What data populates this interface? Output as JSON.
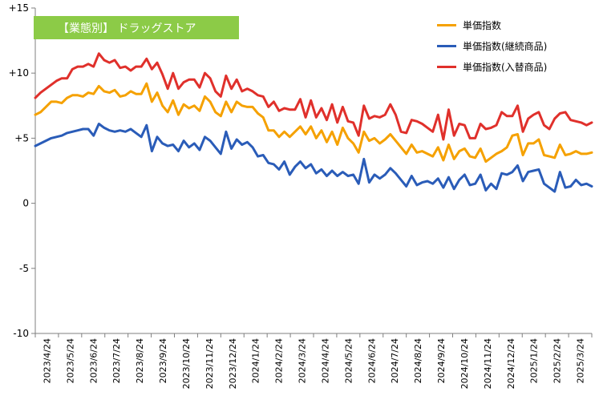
{
  "chart_data": {
    "type": "line",
    "title": "",
    "tag": "【業態別】 ドラッグストア",
    "xlabel": "",
    "ylabel": "",
    "ylim": [
      -10,
      15
    ],
    "y_ticks": [
      "+15",
      "+10",
      "+5",
      "0",
      "-5",
      "-10"
    ],
    "y_tick_values": [
      15,
      10,
      5,
      0,
      -5,
      -10
    ],
    "grid": false,
    "legend_position": "top-right",
    "x_tick_labels": [
      "2023/4/24",
      "2023/5/24",
      "2023/6/24",
      "2023/7/24",
      "2023/8/24",
      "2023/9/24",
      "2023/10/24",
      "2023/11/24",
      "2023/12/24",
      "2024/1/24",
      "2024/2/24",
      "2024/3/24",
      "2024/4/24",
      "2024/5/24",
      "2024/6/24",
      "2024/7/24",
      "2024/8/24",
      "2024/9/24",
      "2024/10/24",
      "2024/11/24",
      "2024/12/24",
      "2025/1/24",
      "2025/2/24",
      "2025/3/24"
    ],
    "colors": {
      "tag_bg": "#8CCB47",
      "axis": "#7F7F7F"
    },
    "series": [
      {
        "name": "単価指数",
        "color": "#F5A100",
        "values": [
          6.8,
          7.0,
          7.4,
          7.8,
          7.8,
          7.7,
          8.1,
          8.3,
          8.3,
          8.2,
          8.5,
          8.4,
          9.0,
          8.6,
          8.5,
          8.7,
          8.2,
          8.3,
          8.6,
          8.4,
          8.4,
          9.2,
          7.8,
          8.5,
          7.5,
          7.0,
          7.9,
          6.8,
          7.6,
          7.3,
          7.5,
          7.1,
          8.2,
          7.8,
          7.0,
          6.7,
          7.8,
          7.0,
          7.8,
          7.5,
          7.4,
          7.4,
          6.9,
          6.6,
          5.6,
          5.6,
          5.1,
          5.5,
          5.1,
          5.5,
          5.9,
          5.3,
          5.9,
          5.0,
          5.6,
          4.7,
          5.5,
          4.5,
          5.8,
          5.0,
          4.6,
          3.9,
          5.5,
          4.8,
          5.0,
          4.6,
          4.9,
          5.3,
          4.8,
          4.3,
          3.8,
          4.5,
          3.9,
          4.0,
          3.8,
          3.6,
          4.3,
          3.3,
          4.5,
          3.4,
          4.0,
          4.2,
          3.6,
          3.5,
          4.2,
          3.2,
          3.5,
          3.8,
          4.0,
          4.3,
          5.2,
          5.3,
          3.7,
          4.6,
          4.6,
          4.9,
          3.7,
          3.6,
          3.5,
          4.5,
          3.7,
          3.8,
          4.0,
          3.8,
          3.8,
          3.9
        ]
      },
      {
        "name": "単価指数(継続商品)",
        "color": "#2A5CB8",
        "values": [
          4.4,
          4.6,
          4.8,
          5.0,
          5.1,
          5.2,
          5.4,
          5.5,
          5.6,
          5.7,
          5.7,
          5.2,
          6.1,
          5.8,
          5.6,
          5.5,
          5.6,
          5.5,
          5.7,
          5.4,
          5.1,
          6.0,
          4.0,
          5.1,
          4.6,
          4.4,
          4.5,
          4.0,
          4.8,
          4.3,
          4.6,
          4.1,
          5.1,
          4.8,
          4.3,
          3.8,
          5.5,
          4.2,
          4.9,
          4.5,
          4.7,
          4.3,
          3.6,
          3.7,
          3.1,
          3.0,
          2.6,
          3.2,
          2.2,
          2.8,
          3.2,
          2.7,
          3.0,
          2.3,
          2.6,
          2.1,
          2.5,
          2.1,
          2.4,
          2.1,
          2.2,
          1.5,
          3.4,
          1.6,
          2.2,
          1.9,
          2.2,
          2.7,
          2.3,
          1.8,
          1.3,
          2.1,
          1.4,
          1.6,
          1.7,
          1.5,
          1.9,
          1.2,
          2.0,
          1.1,
          1.8,
          2.2,
          1.4,
          1.5,
          2.2,
          1.0,
          1.5,
          1.1,
          2.3,
          2.2,
          2.4,
          2.9,
          1.7,
          2.4,
          2.5,
          2.6,
          1.5,
          1.2,
          0.9,
          2.4,
          1.2,
          1.3,
          1.8,
          1.4,
          1.5,
          1.3
        ]
      },
      {
        "name": "単価指数(入替商品)",
        "color": "#E0302B",
        "values": [
          8.1,
          8.5,
          8.8,
          9.1,
          9.4,
          9.6,
          9.6,
          10.3,
          10.5,
          10.5,
          10.7,
          10.5,
          11.5,
          11.0,
          10.8,
          11.0,
          10.4,
          10.5,
          10.2,
          10.5,
          10.5,
          11.1,
          10.3,
          10.8,
          9.9,
          8.8,
          10.0,
          8.8,
          9.3,
          9.5,
          9.5,
          8.9,
          10.0,
          9.6,
          8.6,
          8.2,
          9.8,
          8.8,
          9.5,
          8.6,
          8.8,
          8.6,
          8.3,
          8.2,
          7.4,
          7.8,
          7.1,
          7.3,
          7.2,
          7.2,
          8.0,
          6.6,
          7.9,
          6.6,
          7.3,
          6.4,
          7.6,
          6.2,
          7.4,
          6.3,
          6.2,
          5.2,
          7.5,
          6.5,
          6.7,
          6.6,
          6.8,
          7.6,
          6.8,
          5.5,
          5.4,
          6.4,
          6.3,
          6.1,
          5.8,
          5.5,
          6.8,
          4.9,
          7.2,
          5.2,
          6.1,
          6.0,
          5.0,
          5.0,
          6.1,
          5.7,
          5.8,
          6.0,
          7.0,
          6.7,
          6.7,
          7.5,
          5.5,
          6.5,
          6.8,
          7.0,
          6.0,
          5.7,
          6.5,
          6.9,
          7.0,
          6.4,
          6.3,
          6.2,
          6.0,
          6.2
        ]
      }
    ]
  }
}
